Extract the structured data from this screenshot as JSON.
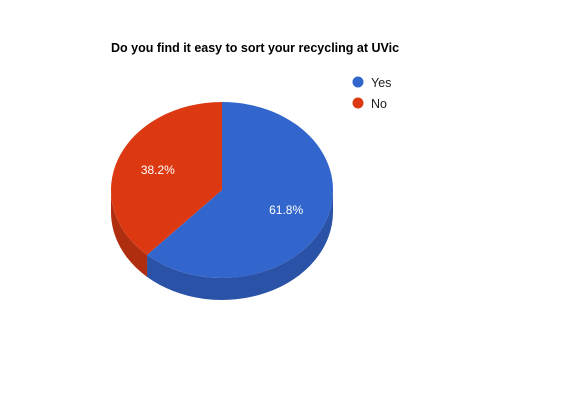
{
  "chart_data": {
    "type": "pie",
    "title": "Do you find it easy to sort your recycling at UVic",
    "categories": [
      "Yes",
      "No"
    ],
    "values": [
      61.8,
      38.2
    ],
    "data_labels": [
      "61.8%",
      "38.2%"
    ],
    "colors": [
      "#3366CC",
      "#DC3912"
    ],
    "side_colors": [
      "#2A52A6",
      "#B02E10"
    ],
    "legend": {
      "position": "top-right",
      "entries": [
        "Yes",
        "No"
      ]
    },
    "style": "3d"
  }
}
